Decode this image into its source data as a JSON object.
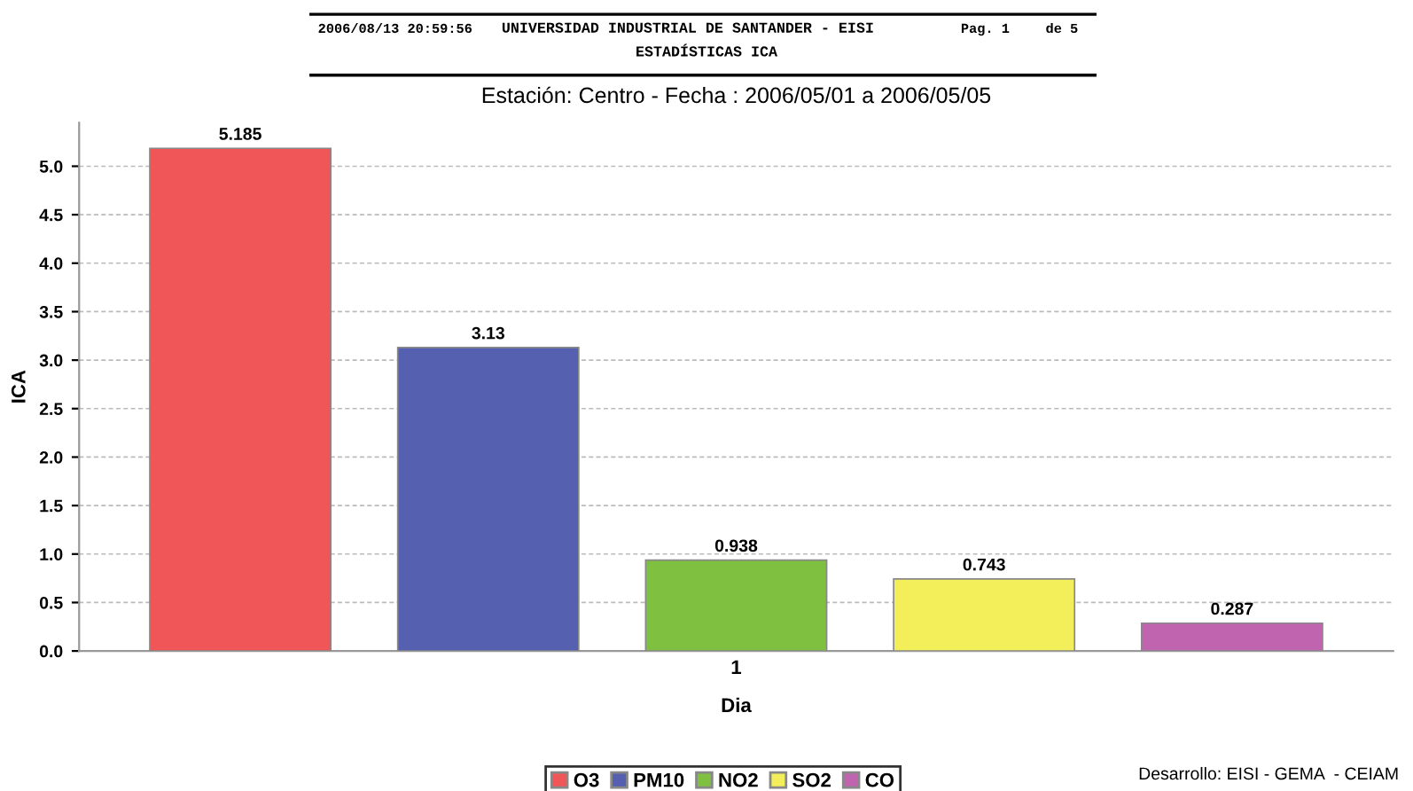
{
  "chart_data": {
    "type": "bar",
    "title": "Estación: Centro - Fecha : 2006/05/01 a 2006/05/05",
    "xlabel": "Dia",
    "ylabel": "ICA",
    "categories": [
      "1"
    ],
    "series": [
      {
        "name": "O3",
        "color": "#f05558",
        "values": [
          5.185
        ]
      },
      {
        "name": "PM10",
        "color": "#5560b0",
        "values": [
          3.13
        ]
      },
      {
        "name": "NO2",
        "color": "#80c040",
        "values": [
          0.938
        ]
      },
      {
        "name": "SO2",
        "color": "#f3ef5a",
        "values": [
          0.743
        ]
      },
      {
        "name": "CO",
        "color": "#c064b0",
        "values": [
          0.287
        ]
      }
    ],
    "ylim": [
      0,
      5.45
    ],
    "yticks": [
      {
        "value": 0,
        "label": "0.0"
      },
      {
        "value": 0.5,
        "label": "0.5"
      },
      {
        "value": 1,
        "label": "1.0"
      },
      {
        "value": 1.5,
        "label": "1.5"
      },
      {
        "value": 2,
        "label": "2.0"
      },
      {
        "value": 2.5,
        "label": "2.5"
      },
      {
        "value": 3,
        "label": "3.0"
      },
      {
        "value": 3.5,
        "label": "3.5"
      },
      {
        "value": 4,
        "label": "4.0"
      },
      {
        "value": 4.5,
        "label": "4.5"
      },
      {
        "value": 5,
        "label": "5.0"
      }
    ],
    "grid": "y",
    "legend": "bottom",
    "data_labels": true,
    "annotations": [
      "2006/08/13 20:59:56",
      "UNIVERSIDAD INDUSTRIAL DE SANTANDER - EISI",
      "Pag. 1",
      "de 5",
      "ESTADÍSTICAS ICA",
      "Desarrollo: EISI - GEMA  - CEIAM"
    ]
  }
}
